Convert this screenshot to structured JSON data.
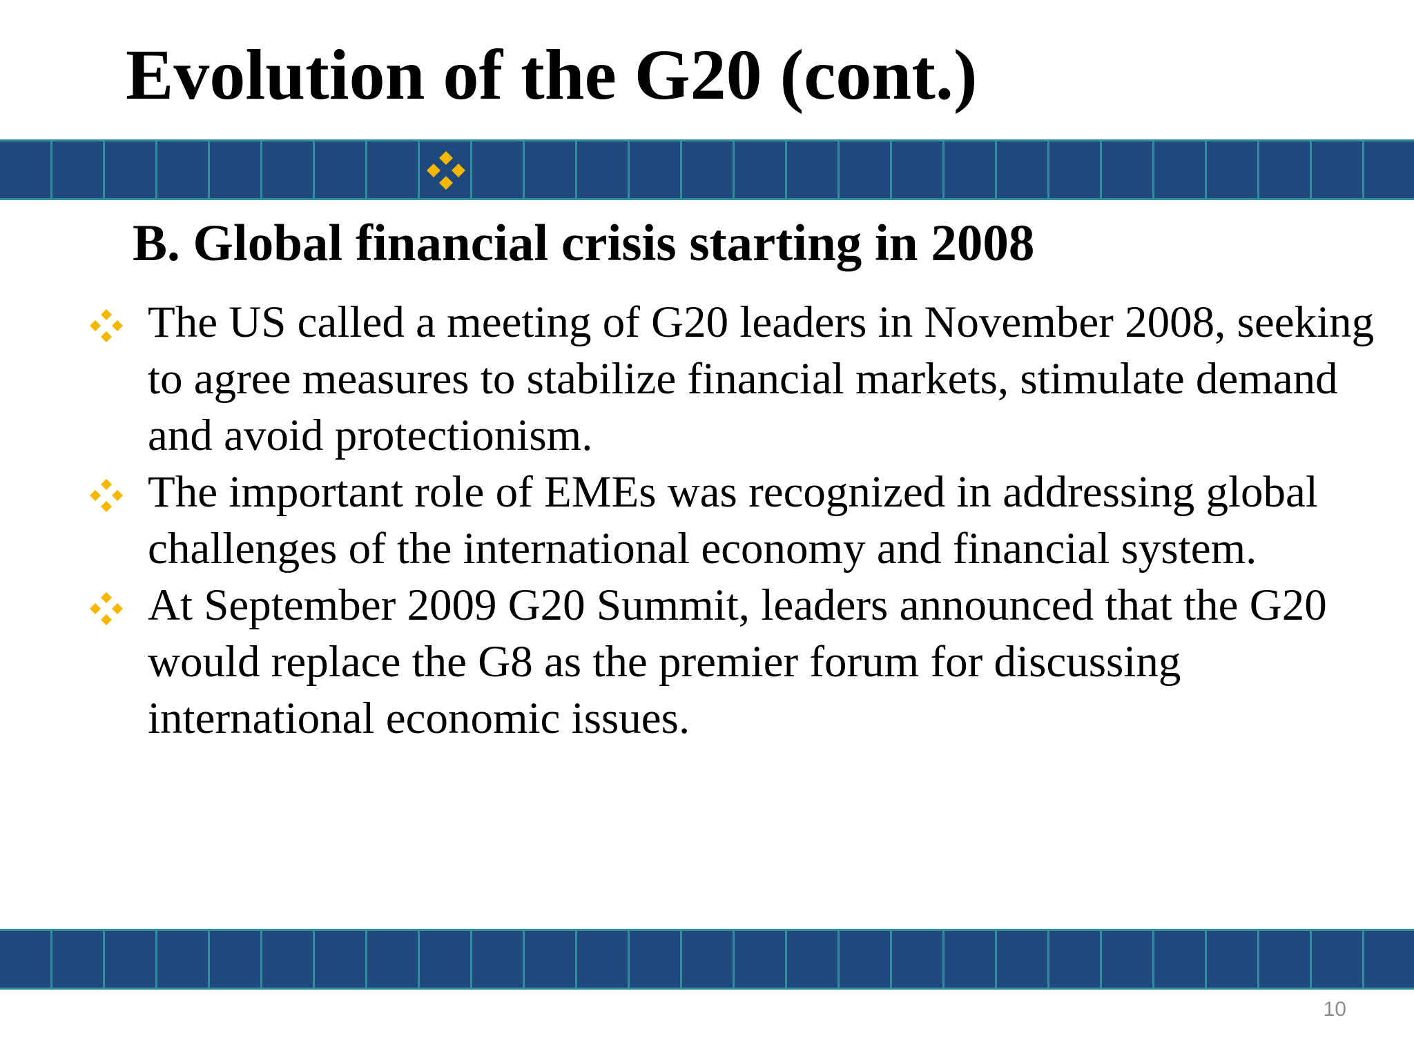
{
  "slide": {
    "title": "Evolution of the G20 (cont.)",
    "section_heading": "B.  Global financial crisis starting in 2008",
    "bullets": [
      {
        "icon": "four-diamond-bullet-icon",
        "text": "The US called a meeting of G20 leaders in November 2008, seeking to agree measures to stabilize financial markets, stimulate demand and avoid protectionism."
      },
      {
        "icon": "four-diamond-bullet-icon",
        "text": "The important role of EMEs was recognized in addressing global challenges of the international economy and financial system."
      },
      {
        "icon": "four-diamond-bullet-icon",
        "text": "At September 2009 G20 Summit, leaders announced that the G20 would replace the G8 as the premier forum for discussing international economic issues."
      }
    ],
    "page_number": "10"
  },
  "theme": {
    "band_color": "#1f497d",
    "band_grid_color": "#2f8f9d",
    "accent_color": "#f5b800",
    "page_number_color": "#8c8c8c"
  }
}
